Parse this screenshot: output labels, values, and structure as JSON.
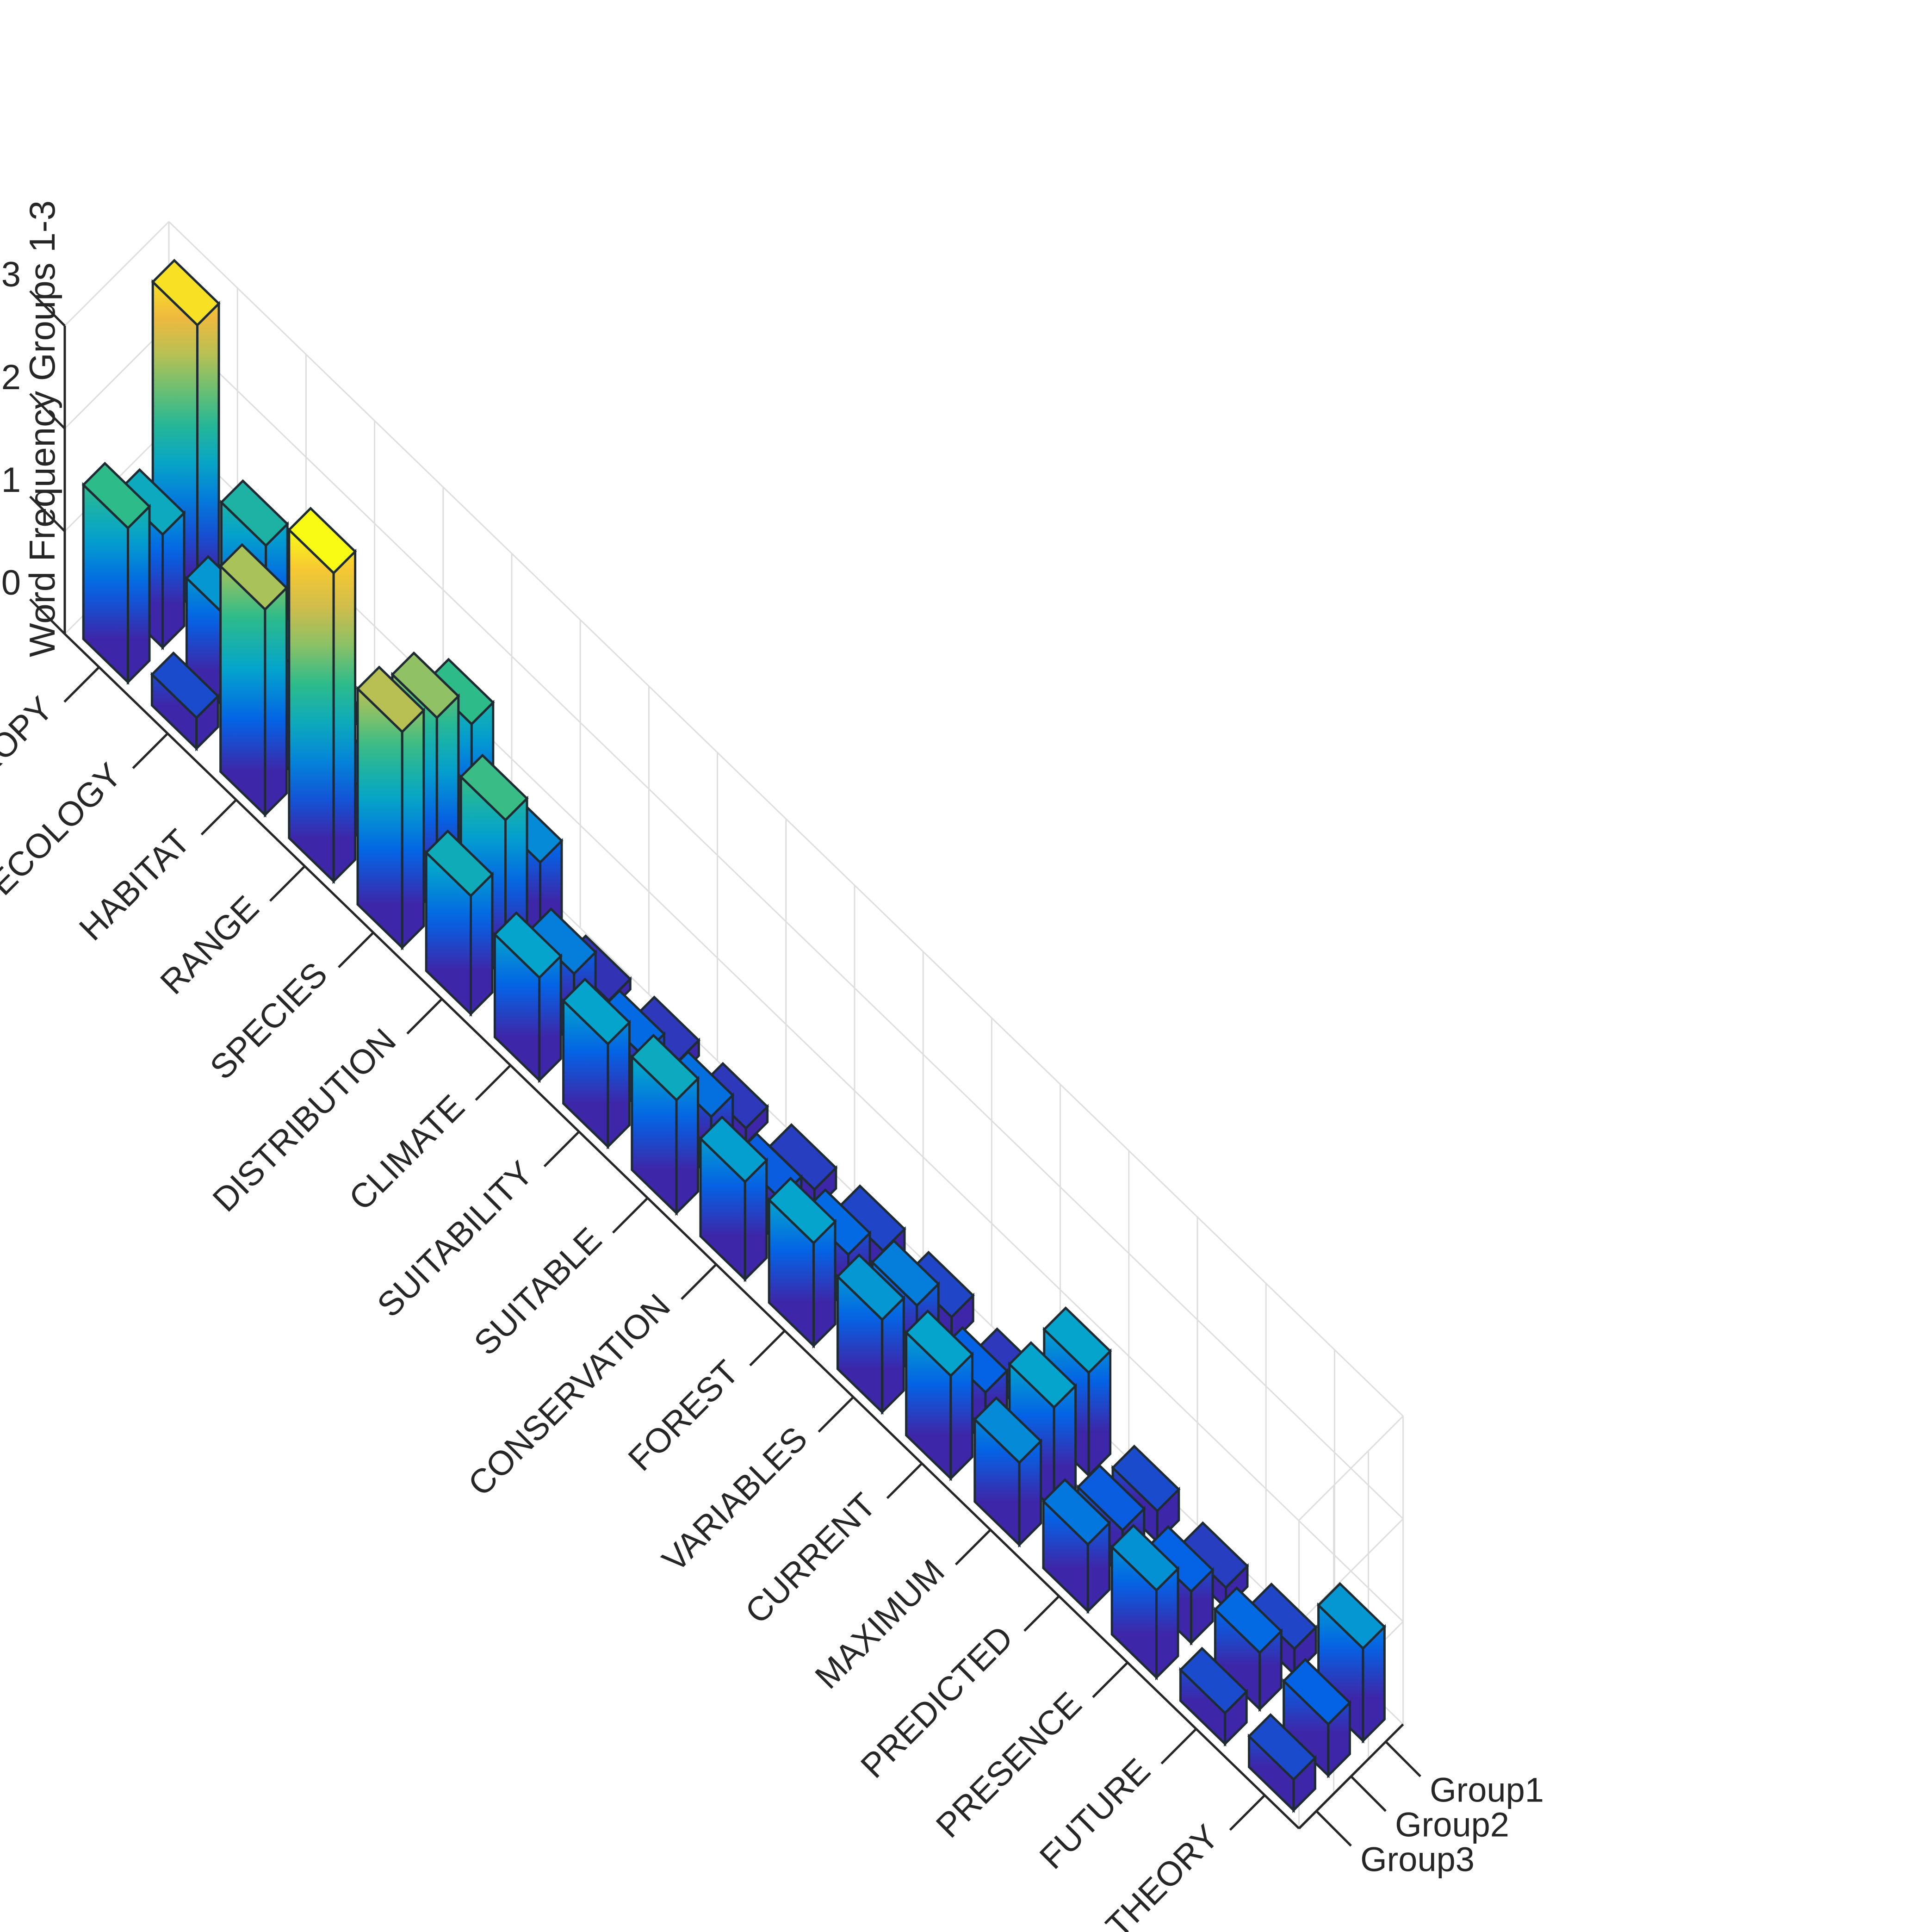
{
  "chart_data": {
    "type": "bar3",
    "title": "",
    "zlabel": "Word Frequency Groups 1-3",
    "categories": [
      "ENTROPY",
      "ECOLOGY",
      "HABITAT",
      "RANGE",
      "SPECIES",
      "DISTRIBUTION",
      "CLIMATE",
      "SUITABILITY",
      "SUITABLE",
      "CONSERVATION",
      "FOREST",
      "VARIABLES",
      "CURRENT",
      "MAXIMUM",
      "PREDICTED",
      "PRESENCE",
      "FUTURE",
      "THEORY"
    ],
    "series": [
      {
        "name": "Group1",
        "values": [
          2.8,
          1.3,
          0.2,
          0.15,
          1.5,
          0.8,
          0.1,
          0.15,
          0.15,
          0.2,
          0.25,
          0.25,
          0.15,
          1.0,
          0.3,
          0.2,
          0.25,
          0.9
        ]
      },
      {
        "name": "Group2",
        "values": [
          1.1,
          0.9,
          1.05,
          0.5,
          1.9,
          1.55,
          0.7,
          0.55,
          0.6,
          0.45,
          0.55,
          0.7,
          0.5,
          1.0,
          0.45,
          0.5,
          0.55,
          0.5
        ]
      },
      {
        "name": "Group3",
        "values": [
          1.5,
          0.3,
          2.0,
          3.0,
          2.1,
          1.15,
          1.0,
          1.0,
          1.1,
          0.95,
          1.0,
          0.9,
          1.0,
          0.8,
          0.65,
          0.85,
          0.3,
          0.3
        ]
      }
    ],
    "zlim": [
      0,
      3
    ],
    "ztick_labels": [
      "0",
      "1",
      "2",
      "3"
    ],
    "group_labels": [
      "Group1",
      "Group2",
      "Group3"
    ],
    "colormap": [
      "#3e26a8",
      "#0463e5",
      "#04a4cc",
      "#2dbb8a",
      "#a9c25a",
      "#f6b83c",
      "#f9fb15"
    ],
    "grid": true
  }
}
